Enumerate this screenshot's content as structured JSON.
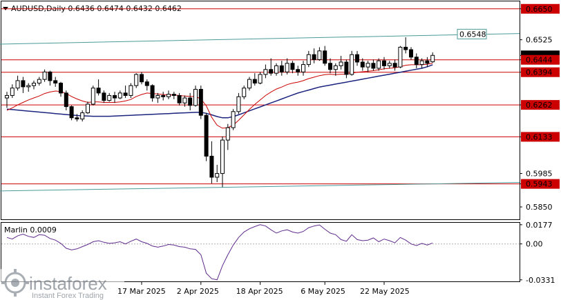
{
  "title": {
    "text": "AUDUSD,Daily  0.6436  0.6474  0.6432  0.6462",
    "arrow_icon": "dropdown-triangle-icon"
  },
  "watermark": {
    "brand": "instaforex",
    "tagline": "Instant Forex Trading",
    "logo_icon": "instaforex-logo-icon"
  },
  "chart_data": [
    {
      "type": "candlestick",
      "symbol": "AUDUSD",
      "timeframe": "Daily",
      "ohlc_header": {
        "open": 0.6436,
        "high": 0.6474,
        "low": 0.6432,
        "close": 0.6462
      },
      "ylim": [
        0.58,
        0.668
      ],
      "y_tick_labels": [
        "0.6650",
        "0.6525",
        "0.6462",
        "0.6444",
        "0.6394",
        "0.6262",
        "0.6133",
        "0.5985",
        "0.5943",
        "0.5850"
      ],
      "x_tick_labels": [
        "17 Mar 2025",
        "2 Apr 2025",
        "18 Apr 2025",
        "6 May 2025",
        "22 May 2025"
      ],
      "x_tick_index": [
        25,
        36,
        47,
        59,
        70
      ],
      "horizontal_levels": [
        {
          "value": 0.665,
          "label": "0.6650",
          "color": "#cc0000"
        },
        {
          "value": 0.6444,
          "label": "0.6444",
          "color": "#cc0000"
        },
        {
          "value": 0.6394,
          "label": "0.6394",
          "color": "#cc0000"
        },
        {
          "value": 0.6262,
          "label": "0.6262",
          "color": "#cc0000"
        },
        {
          "value": 0.6133,
          "label": "0.6133",
          "color": "#cc0000"
        },
        {
          "value": 0.5943,
          "label": "0.5943",
          "color": "#cc0000"
        }
      ],
      "current_price": {
        "value": 0.6462,
        "label": "0.6462"
      },
      "channel_lines": [
        {
          "color": "#4a9a9a",
          "start_index": 0,
          "start_value": 0.6508,
          "end_index": 90,
          "end_value": 0.6548,
          "label": "0.6548"
        },
        {
          "color": "#4a9a9a",
          "start_index": 0,
          "start_value": 0.5915,
          "end_index": 90,
          "end_value": 0.5947
        }
      ],
      "candles": [
        [
          0.629,
          0.6315,
          0.625,
          0.63
        ],
        [
          0.63,
          0.6345,
          0.629,
          0.633
        ],
        [
          0.633,
          0.638,
          0.632,
          0.636
        ],
        [
          0.636,
          0.6375,
          0.631,
          0.6335
        ],
        [
          0.6335,
          0.635,
          0.6315,
          0.634
        ],
        [
          0.634,
          0.636,
          0.6325,
          0.635
        ],
        [
          0.635,
          0.6375,
          0.634,
          0.6365
        ],
        [
          0.6365,
          0.6405,
          0.6355,
          0.6395
        ],
        [
          0.6395,
          0.64,
          0.634,
          0.636
        ],
        [
          0.636,
          0.6375,
          0.6335,
          0.635
        ],
        [
          0.635,
          0.6355,
          0.6295,
          0.631
        ],
        [
          0.631,
          0.632,
          0.624,
          0.6255
        ],
        [
          0.6255,
          0.626,
          0.62,
          0.621
        ],
        [
          0.621,
          0.6225,
          0.6195,
          0.6205
        ],
        [
          0.6205,
          0.624,
          0.6195,
          0.623
        ],
        [
          0.623,
          0.6275,
          0.6225,
          0.6265
        ],
        [
          0.6265,
          0.634,
          0.626,
          0.633
        ],
        [
          0.633,
          0.6365,
          0.63,
          0.631
        ],
        [
          0.631,
          0.632,
          0.627,
          0.628
        ],
        [
          0.628,
          0.631,
          0.6275,
          0.63
        ],
        [
          0.63,
          0.6315,
          0.627,
          0.629
        ],
        [
          0.629,
          0.632,
          0.6285,
          0.631
        ],
        [
          0.631,
          0.634,
          0.629,
          0.63
        ],
        [
          0.63,
          0.635,
          0.629,
          0.634
        ],
        [
          0.634,
          0.639,
          0.633,
          0.6385
        ],
        [
          0.6385,
          0.6395,
          0.6345,
          0.6355
        ],
        [
          0.6355,
          0.6365,
          0.632,
          0.634
        ],
        [
          0.634,
          0.6345,
          0.6275,
          0.629
        ],
        [
          0.629,
          0.631,
          0.627,
          0.63
        ],
        [
          0.63,
          0.6315,
          0.628,
          0.6295
        ],
        [
          0.6295,
          0.632,
          0.6285,
          0.6305
        ],
        [
          0.6305,
          0.6315,
          0.6285,
          0.63
        ],
        [
          0.63,
          0.631,
          0.626,
          0.627
        ],
        [
          0.627,
          0.63,
          0.6255,
          0.629
        ],
        [
          0.629,
          0.631,
          0.624,
          0.626
        ],
        [
          0.626,
          0.634,
          0.6255,
          0.6325
        ],
        [
          0.6325,
          0.634,
          0.6205,
          0.622
        ],
        [
          0.622,
          0.623,
          0.6035,
          0.6055
        ],
        [
          0.6055,
          0.6115,
          0.5945,
          0.597
        ],
        [
          0.597,
          0.602,
          0.595,
          0.5985
        ],
        [
          0.5985,
          0.6135,
          0.593,
          0.612
        ],
        [
          0.612,
          0.6185,
          0.608,
          0.617
        ],
        [
          0.617,
          0.6245,
          0.616,
          0.6235
        ],
        [
          0.6235,
          0.631,
          0.6225,
          0.6295
        ],
        [
          0.6295,
          0.634,
          0.6285,
          0.633
        ],
        [
          0.633,
          0.6375,
          0.632,
          0.6365
        ],
        [
          0.6365,
          0.639,
          0.634,
          0.635
        ],
        [
          0.635,
          0.6395,
          0.6345,
          0.6385
        ],
        [
          0.6385,
          0.6425,
          0.637,
          0.6405
        ],
        [
          0.6405,
          0.645,
          0.638,
          0.639
        ],
        [
          0.639,
          0.643,
          0.638,
          0.642
        ],
        [
          0.642,
          0.644,
          0.638,
          0.6395
        ],
        [
          0.6395,
          0.645,
          0.6385,
          0.643
        ],
        [
          0.643,
          0.644,
          0.639,
          0.6405
        ],
        [
          0.6405,
          0.642,
          0.638,
          0.6395
        ],
        [
          0.6395,
          0.644,
          0.638,
          0.6425
        ],
        [
          0.6425,
          0.648,
          0.6415,
          0.6465
        ],
        [
          0.6465,
          0.649,
          0.643,
          0.6445
        ],
        [
          0.6445,
          0.6495,
          0.644,
          0.648
        ],
        [
          0.648,
          0.65,
          0.642,
          0.643
        ],
        [
          0.643,
          0.645,
          0.639,
          0.6405
        ],
        [
          0.6405,
          0.643,
          0.638,
          0.642
        ],
        [
          0.642,
          0.646,
          0.6405,
          0.6435
        ],
        [
          0.6435,
          0.6445,
          0.637,
          0.6385
        ],
        [
          0.6385,
          0.648,
          0.638,
          0.6465
        ],
        [
          0.6465,
          0.648,
          0.642,
          0.6435
        ],
        [
          0.6435,
          0.645,
          0.64,
          0.6415
        ],
        [
          0.6415,
          0.644,
          0.6395,
          0.643
        ],
        [
          0.643,
          0.6445,
          0.64,
          0.641
        ],
        [
          0.641,
          0.645,
          0.64,
          0.644
        ],
        [
          0.644,
          0.6455,
          0.6405,
          0.642
        ],
        [
          0.642,
          0.644,
          0.641,
          0.643
        ],
        [
          0.643,
          0.6445,
          0.64,
          0.6415
        ],
        [
          0.6415,
          0.65,
          0.641,
          0.6495
        ],
        [
          0.6495,
          0.6535,
          0.647,
          0.6485
        ],
        [
          0.6485,
          0.6495,
          0.6445,
          0.6455
        ],
        [
          0.6455,
          0.647,
          0.641,
          0.6425
        ],
        [
          0.6425,
          0.645,
          0.641,
          0.644
        ],
        [
          0.644,
          0.6455,
          0.6415,
          0.643
        ],
        [
          0.6436,
          0.6474,
          0.6432,
          0.6462
        ]
      ],
      "ma_fast_color": "#cc0000",
      "ma_slow_color": "#1a237e",
      "ma_fast": [
        0.624,
        0.625,
        0.6262,
        0.6272,
        0.6282,
        0.629,
        0.6298,
        0.6308,
        0.6314,
        0.6318,
        0.6316,
        0.6308,
        0.6296,
        0.6286,
        0.6278,
        0.6272,
        0.6274,
        0.6274,
        0.6272,
        0.6272,
        0.6272,
        0.6274,
        0.6278,
        0.6284,
        0.6296,
        0.6304,
        0.631,
        0.6308,
        0.6306,
        0.6304,
        0.6302,
        0.6302,
        0.63,
        0.6298,
        0.6296,
        0.6296,
        0.6286,
        0.6258,
        0.6212,
        0.618,
        0.6168,
        0.617,
        0.618,
        0.62,
        0.6222,
        0.6244,
        0.6264,
        0.6282,
        0.63,
        0.6314,
        0.6326,
        0.6334,
        0.6344,
        0.635,
        0.6354,
        0.636,
        0.6368,
        0.6374,
        0.638,
        0.6384,
        0.6386,
        0.6384,
        0.6386,
        0.6386,
        0.639,
        0.6394,
        0.6396,
        0.6398,
        0.64,
        0.6404,
        0.6408,
        0.641,
        0.6412,
        0.6416,
        0.6422,
        0.6424,
        0.6424,
        0.6424,
        0.6426,
        0.643
      ],
      "ma_slow": [
        0.6245,
        0.6243,
        0.6241,
        0.6239,
        0.6237,
        0.6235,
        0.6233,
        0.6231,
        0.6229,
        0.6227,
        0.6225,
        0.6223,
        0.6221,
        0.6219,
        0.6218,
        0.6217,
        0.6216,
        0.6216,
        0.6216,
        0.6216,
        0.6217,
        0.6218,
        0.6219,
        0.622,
        0.6221,
        0.6222,
        0.6223,
        0.6224,
        0.6225,
        0.6226,
        0.6227,
        0.6228,
        0.6229,
        0.623,
        0.6231,
        0.6232,
        0.6232,
        0.6228,
        0.6222,
        0.6215,
        0.621,
        0.621,
        0.6215,
        0.6222,
        0.623,
        0.6238,
        0.6246,
        0.6254,
        0.6262,
        0.627,
        0.6278,
        0.6286,
        0.6294,
        0.6302,
        0.631,
        0.6316,
        0.6322,
        0.6328,
        0.6334,
        0.6338,
        0.6342,
        0.6346,
        0.635,
        0.6354,
        0.6358,
        0.6362,
        0.6366,
        0.637,
        0.6374,
        0.6378,
        0.6382,
        0.6386,
        0.639,
        0.6394,
        0.6398,
        0.6402,
        0.6406,
        0.641,
        0.6416,
        0.6424
      ]
    },
    {
      "type": "line",
      "title": "Marlin 0.0009",
      "ylim": [
        -0.0345,
        0.0195
      ],
      "y_tick_labels": [
        "0.0177",
        "0.00",
        "-0.0331"
      ],
      "y_tick_values": [
        0.0177,
        0.0,
        -0.0331
      ],
      "color": "#5e2a8c",
      "values": [
        0.006,
        0.0045,
        0.0075,
        0.009,
        0.007,
        0.006,
        0.0085,
        0.008,
        0.005,
        0.0035,
        0.0005,
        -0.004,
        -0.0055,
        -0.0045,
        -0.0025,
        -0.0005,
        0.002,
        0.003,
        0.0015,
        0.0005,
        0.001,
        0.002,
        0.0,
        0.0025,
        0.0045,
        0.002,
        0.0005,
        -0.002,
        -0.003,
        -0.002,
        -0.0005,
        -0.001,
        -0.0025,
        -0.003,
        -0.0045,
        -0.005,
        -0.01,
        -0.027,
        -0.032,
        -0.0331,
        -0.02,
        -0.01,
        -0.001,
        0.006,
        0.011,
        0.014,
        0.016,
        0.0177,
        0.0165,
        0.013,
        0.01,
        0.012,
        0.013,
        0.011,
        0.01,
        0.0115,
        0.015,
        0.0165,
        0.0175,
        0.0135,
        0.01,
        0.0085,
        0.004,
        0.0025,
        0.0085,
        0.004,
        0.003,
        0.0035,
        0.0055,
        0.002,
        0.0045,
        0.003,
        0.001,
        0.006,
        0.0035,
        0.0,
        -0.0015,
        0.0005,
        -0.001,
        0.0009
      ]
    }
  ]
}
